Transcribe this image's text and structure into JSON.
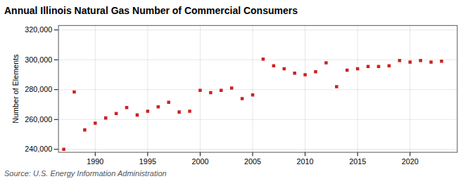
{
  "chart_data": {
    "type": "scatter",
    "title": "Annual Illinois Natural Gas Number of Commercial Consumers",
    "ylabel": "Number of Elements",
    "source": "Source: U.S. Energy Information Administration",
    "x": [
      1987,
      1988,
      1989,
      1990,
      1991,
      1992,
      1993,
      1994,
      1995,
      1996,
      1997,
      1998,
      1999,
      2000,
      2001,
      2002,
      2003,
      2004,
      2005,
      2006,
      2007,
      2008,
      2009,
      2010,
      2011,
      2012,
      2013,
      2014,
      2015,
      2016,
      2017,
      2018,
      2019,
      2020,
      2021,
      2022,
      2023
    ],
    "values": [
      240000,
      278500,
      253000,
      257500,
      261000,
      264000,
      268000,
      263000,
      265500,
      268500,
      271500,
      265000,
      265500,
      279500,
      278000,
      279500,
      281000,
      274000,
      276500,
      300500,
      296000,
      294000,
      291000,
      290000,
      292000,
      298000,
      282000,
      293000,
      294000,
      295500,
      295500,
      296000,
      299500,
      298500,
      299500,
      298500,
      299000
    ],
    "color": "#cc2222",
    "marker": "square",
    "xlim": [
      1986.5,
      2024.5
    ],
    "xticks": [
      1990,
      1995,
      2000,
      2005,
      2010,
      2015,
      2020
    ],
    "ylim": [
      238000,
      323000
    ],
    "yticks": [
      {
        "value": 240000,
        "label": "240,000"
      },
      {
        "value": 260000,
        "label": "260,000"
      },
      {
        "value": 280000,
        "label": "280,000"
      },
      {
        "value": 300000,
        "label": "300,000"
      },
      {
        "value": 320000,
        "label": "320,000"
      }
    ],
    "grid": true
  }
}
